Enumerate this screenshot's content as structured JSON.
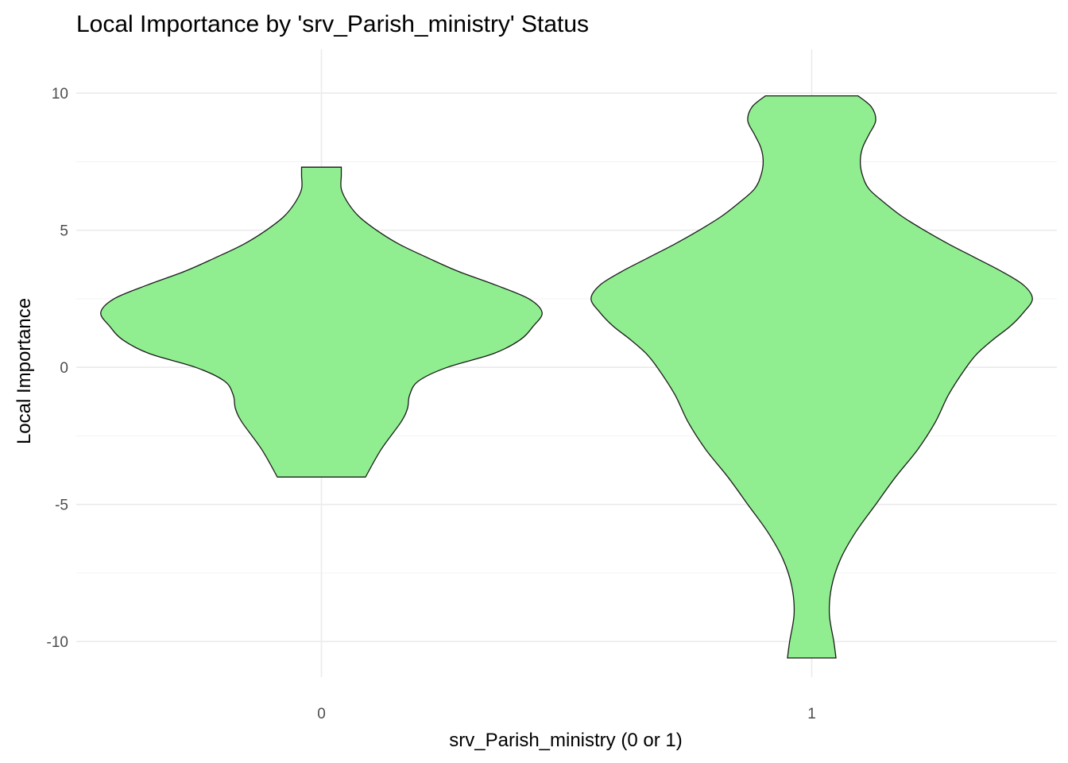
{
  "chart_data": {
    "type": "violin",
    "title": "Local Importance by 'srv_Parish_ministry' Status",
    "xlabel": "srv_Parish_ministry (0 or 1)",
    "ylabel": "Local Importance",
    "categories": [
      "0",
      "1"
    ],
    "ylim": [
      -11.3,
      11.6
    ],
    "yticks": [
      -10,
      -5,
      0,
      5,
      10
    ],
    "ytick_labels": [
      "-10",
      "-5",
      "0",
      "5",
      "10"
    ],
    "fill_color": "#90EE90",
    "outline_color": "#1a1a1a",
    "grid": true,
    "legend": "none",
    "series": [
      {
        "category": "0",
        "min": -4.0,
        "max": 7.3,
        "density_profile": [
          [
            -4.0,
            0.2
          ],
          [
            -3.0,
            0.27
          ],
          [
            -2.0,
            0.36
          ],
          [
            -1.5,
            0.39
          ],
          [
            -1.0,
            0.4
          ],
          [
            -0.5,
            0.44
          ],
          [
            0.0,
            0.57
          ],
          [
            0.5,
            0.78
          ],
          [
            1.0,
            0.9
          ],
          [
            1.5,
            0.96
          ],
          [
            2.0,
            1.0
          ],
          [
            2.5,
            0.94
          ],
          [
            3.0,
            0.79
          ],
          [
            3.5,
            0.62
          ],
          [
            4.0,
            0.48
          ],
          [
            4.5,
            0.35
          ],
          [
            5.0,
            0.25
          ],
          [
            5.5,
            0.17
          ],
          [
            6.0,
            0.12
          ],
          [
            6.5,
            0.09
          ],
          [
            7.0,
            0.09
          ],
          [
            7.3,
            0.09
          ]
        ]
      },
      {
        "category": "1",
        "min": -10.6,
        "max": 9.9,
        "density_profile": [
          [
            -10.6,
            0.11
          ],
          [
            -10.0,
            0.1
          ],
          [
            -9.0,
            0.08
          ],
          [
            -8.0,
            0.09
          ],
          [
            -7.0,
            0.13
          ],
          [
            -6.0,
            0.2
          ],
          [
            -5.0,
            0.29
          ],
          [
            -4.0,
            0.38
          ],
          [
            -3.0,
            0.48
          ],
          [
            -2.0,
            0.56
          ],
          [
            -1.0,
            0.62
          ],
          [
            0.0,
            0.7
          ],
          [
            0.5,
            0.75
          ],
          [
            1.0,
            0.82
          ],
          [
            1.5,
            0.9
          ],
          [
            2.0,
            0.96
          ],
          [
            2.5,
            1.0
          ],
          [
            3.0,
            0.96
          ],
          [
            3.5,
            0.86
          ],
          [
            4.0,
            0.74
          ],
          [
            4.5,
            0.62
          ],
          [
            5.0,
            0.51
          ],
          [
            5.5,
            0.41
          ],
          [
            6.0,
            0.33
          ],
          [
            6.5,
            0.26
          ],
          [
            7.0,
            0.23
          ],
          [
            7.5,
            0.22
          ],
          [
            8.0,
            0.23
          ],
          [
            8.5,
            0.26
          ],
          [
            9.0,
            0.29
          ],
          [
            9.5,
            0.27
          ],
          [
            9.9,
            0.21
          ]
        ]
      }
    ]
  }
}
